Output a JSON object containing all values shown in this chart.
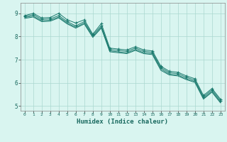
{
  "title": "",
  "xlabel": "Humidex (Indice chaleur)",
  "ylabel": "",
  "xlim": [
    -0.5,
    23.5
  ],
  "ylim": [
    4.8,
    9.45
  ],
  "yticks": [
    5,
    6,
    7,
    8,
    9
  ],
  "xticks": [
    0,
    1,
    2,
    3,
    4,
    5,
    6,
    7,
    8,
    9,
    10,
    11,
    12,
    13,
    14,
    15,
    16,
    17,
    18,
    19,
    20,
    21,
    22,
    23
  ],
  "bg_color": "#d9f5f0",
  "grid_color": "#aad8d0",
  "line_color": "#1a7a6e",
  "series1": [
    8.9,
    9.0,
    8.8,
    8.82,
    9.0,
    8.72,
    8.58,
    8.72,
    8.1,
    8.56,
    7.5,
    7.46,
    7.42,
    7.56,
    7.42,
    7.38,
    6.72,
    6.5,
    6.46,
    6.3,
    6.18,
    5.46,
    5.76,
    5.3
  ],
  "series2": [
    8.86,
    8.94,
    8.74,
    8.76,
    8.9,
    8.64,
    8.46,
    8.64,
    8.06,
    8.46,
    7.44,
    7.4,
    7.36,
    7.5,
    7.36,
    7.32,
    6.66,
    6.44,
    6.4,
    6.24,
    6.12,
    5.4,
    5.7,
    5.24
  ],
  "series3": [
    8.82,
    8.88,
    8.68,
    8.7,
    8.84,
    8.58,
    8.4,
    8.58,
    8.0,
    8.4,
    7.38,
    7.34,
    7.3,
    7.44,
    7.3,
    7.26,
    6.6,
    6.38,
    6.34,
    6.18,
    6.06,
    5.34,
    5.64,
    5.18
  ],
  "series4": [
    8.78,
    8.84,
    8.64,
    8.66,
    8.8,
    8.54,
    8.36,
    8.54,
    7.96,
    8.36,
    7.34,
    7.3,
    7.26,
    7.4,
    7.26,
    7.22,
    6.54,
    6.34,
    6.3,
    6.14,
    6.02,
    5.3,
    5.6,
    5.14
  ]
}
